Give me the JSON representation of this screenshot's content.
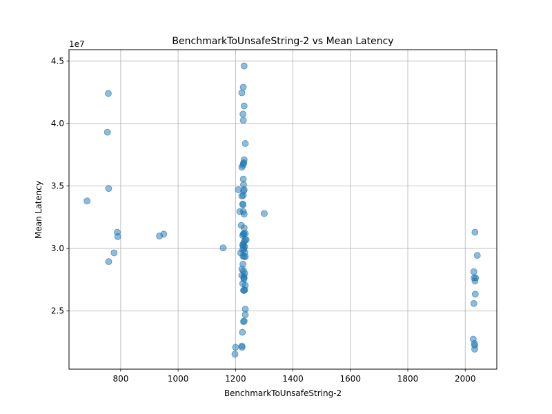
{
  "chart_data": {
    "type": "scatter",
    "title": "BenchmarkToUnsafeString-2 vs Mean Latency",
    "xlabel": "BenchmarkToUnsafeString-2",
    "ylabel": "Mean Latency",
    "y_offset_label": "1e7",
    "xlim": [
      620,
      2110
    ],
    "ylim": [
      20350000,
      45900000
    ],
    "x_ticks": [
      800,
      1000,
      1200,
      1400,
      1600,
      1800,
      2000
    ],
    "x_tick_labels": [
      "800",
      "1000",
      "1200",
      "1400",
      "1600",
      "1800",
      "2000"
    ],
    "y_ticks": [
      25000000,
      30000000,
      35000000,
      40000000,
      45000000
    ],
    "y_tick_labels": [
      "2.5",
      "3.0",
      "3.5",
      "4.0",
      "4.5"
    ],
    "grid": true,
    "point_color": "#1f77b4",
    "point_alpha": 0.5,
    "points": [
      [
        683,
        33800000
      ],
      [
        757,
        42400000
      ],
      [
        754,
        39300000
      ],
      [
        758,
        34800000
      ],
      [
        758,
        28950000
      ],
      [
        777,
        29650000
      ],
      [
        788,
        31300000
      ],
      [
        790,
        30950000
      ],
      [
        935,
        31000000
      ],
      [
        950,
        31150000
      ],
      [
        1157,
        30050000
      ],
      [
        1200,
        22100000
      ],
      [
        1198,
        21550000
      ],
      [
        1210,
        34700000
      ],
      [
        1215,
        32950000
      ],
      [
        1218,
        29650000
      ],
      [
        1220,
        31850000
      ],
      [
        1222,
        42450000
      ],
      [
        1222,
        36500000
      ],
      [
        1222,
        34200000
      ],
      [
        1222,
        28350000
      ],
      [
        1222,
        27850000
      ],
      [
        1222,
        22200000
      ],
      [
        1223,
        22100000
      ],
      [
        1224,
        23300000
      ],
      [
        1225,
        33550000
      ],
      [
        1225,
        31050000
      ],
      [
        1225,
        30250000
      ],
      [
        1225,
        29900000
      ],
      [
        1225,
        27200000
      ],
      [
        1226,
        40750000
      ],
      [
        1226,
        36650000
      ],
      [
        1226,
        33500000
      ],
      [
        1226,
        30350000
      ],
      [
        1226,
        29400000
      ],
      [
        1226,
        28750000
      ],
      [
        1227,
        42900000
      ],
      [
        1227,
        40250000
      ],
      [
        1227,
        36800000
      ],
      [
        1227,
        35550000
      ],
      [
        1227,
        34250000
      ],
      [
        1227,
        32950000
      ],
      [
        1227,
        31150000
      ],
      [
        1228,
        35100000
      ],
      [
        1228,
        34600000
      ],
      [
        1228,
        30200000
      ],
      [
        1228,
        28200000
      ],
      [
        1228,
        26650000
      ],
      [
        1228,
        24150000
      ],
      [
        1229,
        36850000
      ],
      [
        1229,
        31200000
      ],
      [
        1229,
        29950000
      ],
      [
        1229,
        27750000
      ],
      [
        1229,
        27550000
      ],
      [
        1230,
        44600000
      ],
      [
        1230,
        41400000
      ],
      [
        1230,
        37100000
      ],
      [
        1230,
        34700000
      ],
      [
        1230,
        32750000
      ],
      [
        1230,
        31650000
      ],
      [
        1230,
        30550000
      ],
      [
        1230,
        29350000
      ],
      [
        1230,
        27650000
      ],
      [
        1230,
        26650000
      ],
      [
        1230,
        24200000
      ],
      [
        1232,
        30150000
      ],
      [
        1232,
        29700000
      ],
      [
        1232,
        28000000
      ],
      [
        1232,
        26700000
      ],
      [
        1234,
        38400000
      ],
      [
        1234,
        31200000
      ],
      [
        1234,
        30700000
      ],
      [
        1234,
        29350000
      ],
      [
        1234,
        27050000
      ],
      [
        1234,
        25150000
      ],
      [
        1234,
        24700000
      ],
      [
        1237,
        30700000
      ],
      [
        1300,
        32800000
      ],
      [
        2028,
        22750000
      ],
      [
        2030,
        28150000
      ],
      [
        2030,
        25600000
      ],
      [
        2031,
        27650000
      ],
      [
        2032,
        22400000
      ],
      [
        2033,
        22250000
      ],
      [
        2033,
        21950000
      ],
      [
        2034,
        31300000
      ],
      [
        2034,
        27400000
      ],
      [
        2035,
        26350000
      ],
      [
        2036,
        27650000
      ],
      [
        2042,
        29450000
      ]
    ]
  }
}
